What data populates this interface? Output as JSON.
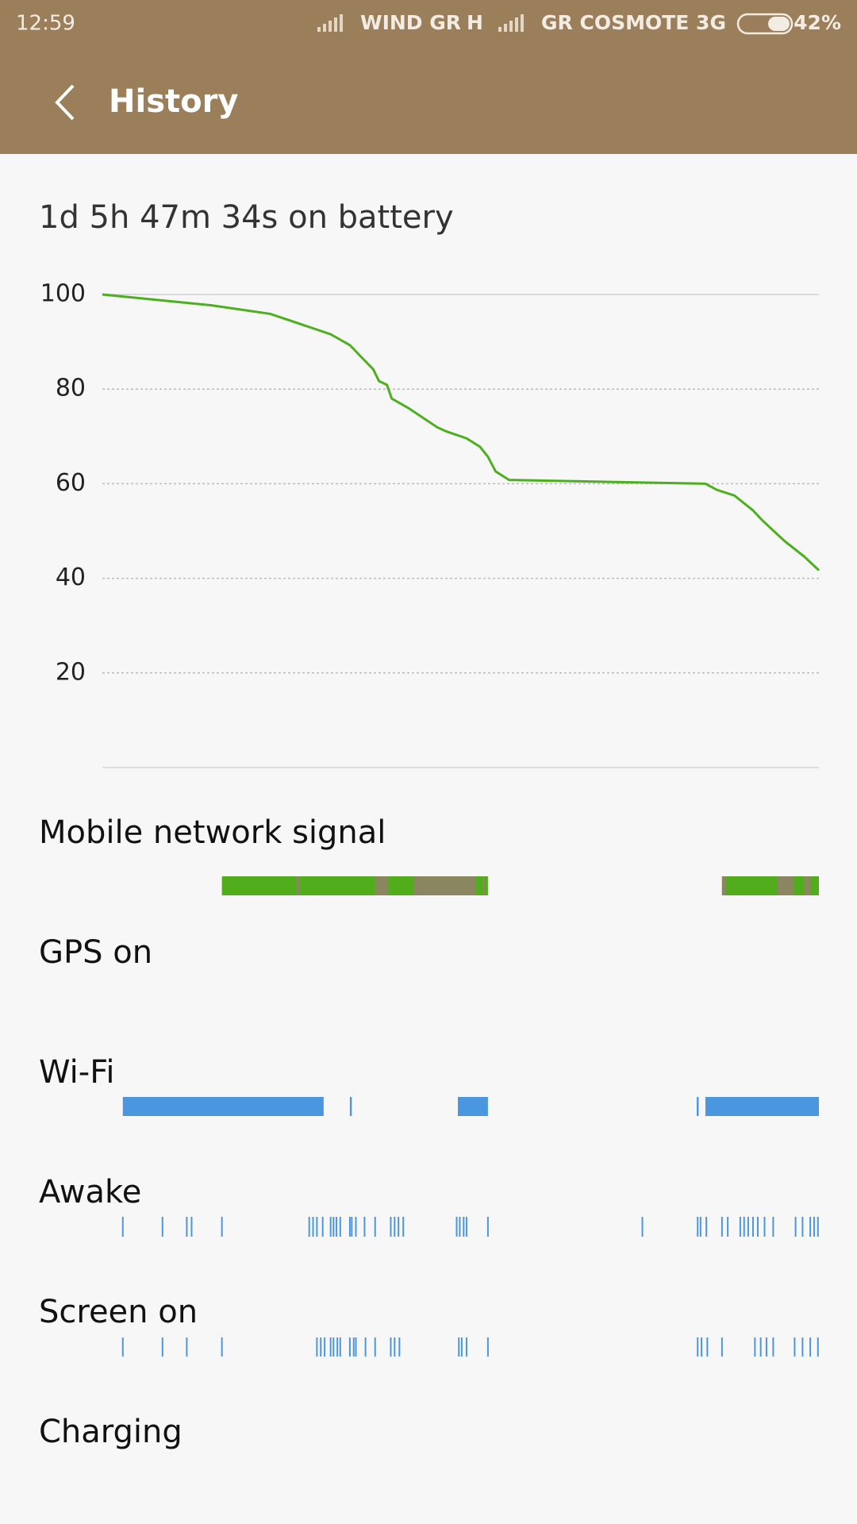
{
  "status_bar": {
    "time": "12:59",
    "carrier1": "WIND GR",
    "network1": "H",
    "carrier2": "GR COSMOTE 3G",
    "battery": "42%"
  },
  "header": {
    "title": "History"
  },
  "summary": "1d 5h 47m 34s on battery",
  "chart_data": {
    "type": "line",
    "color": "#4caf1e",
    "xlim": [
      0,
      29.79
    ],
    "ylim": [
      0,
      100
    ],
    "yticks": [
      20,
      40,
      60,
      80,
      100
    ],
    "grid": true,
    "x": [
      0,
      4.56,
      6.98,
      9.49,
      10.29,
      10.78,
      11.26,
      11.5,
      11.83,
      12.03,
      12.72,
      13.93,
      14.33,
      15.14,
      15.7,
      16.03,
      16.35,
      16.91,
      25.07,
      25.55,
      26.28,
      27.04,
      27.41,
      27.89,
      28.38,
      29.18,
      29.79
    ],
    "values": [
      100,
      97.7,
      95.9,
      91.6,
      89.3,
      86.7,
      84.2,
      81.7,
      80.9,
      78,
      76,
      71.9,
      71,
      69.6,
      67.8,
      65.7,
      62.6,
      60.8,
      60,
      58.7,
      57.5,
      54.4,
      52.4,
      50.1,
      47.8,
      44.6,
      41.7
    ]
  },
  "timelines": [
    {
      "label": "Mobile network signal",
      "segments": [
        {
          "start": 4.97,
          "end": 16.03,
          "color": "#52ad1c"
        },
        {
          "start": 8.07,
          "end": 8.2,
          "color": "#8a8660"
        },
        {
          "start": 11.34,
          "end": 11.87,
          "color": "#8a8660"
        },
        {
          "start": 12.96,
          "end": 15.54,
          "color": "#8a8660"
        },
        {
          "start": 15.83,
          "end": 15.91,
          "color": "#8a8660"
        },
        {
          "start": 25.76,
          "end": 29.79,
          "color": "#52ad1c"
        },
        {
          "start": 25.76,
          "end": 25.92,
          "color": "#8a8660"
        },
        {
          "start": 28.06,
          "end": 28.74,
          "color": "#8a8660"
        },
        {
          "start": 29.18,
          "end": 29.43,
          "color": "#8a8660"
        }
      ]
    },
    {
      "label": "GPS on",
      "segments": []
    },
    {
      "label": "Wi-Fi",
      "segments": [
        {
          "start": 0.85,
          "end": 9.2,
          "color": "#4a97e0"
        },
        {
          "start": 10.29,
          "end": 10.37,
          "color": "#4a97e0"
        },
        {
          "start": 14.78,
          "end": 16.03,
          "color": "#4a97e0"
        },
        {
          "start": 24.71,
          "end": 24.79,
          "color": "#4a97e0"
        },
        {
          "start": 25.07,
          "end": 29.79,
          "color": "#4a97e0"
        }
      ]
    },
    {
      "label": "Awake",
      "color": "#4a97e0",
      "ticks": [
        0.85,
        2.5,
        3.51,
        3.71,
        4.97,
        8.6,
        8.76,
        8.92,
        9.16,
        9.49,
        9.61,
        9.73,
        9.89,
        10.29,
        10.37,
        10.54,
        10.9,
        11.34,
        11.99,
        12.15,
        12.31,
        12.51,
        14.73,
        14.86,
        15.02,
        15.14,
        16.03,
        22.45,
        24.75,
        24.87,
        25.11,
        25.76,
        26,
        26.52,
        26.68,
        26.85,
        27.05,
        27.25,
        27.53,
        27.89,
        28.82,
        29.11,
        29.43,
        29.59,
        29.75
      ]
    },
    {
      "label": "Screen on",
      "color": "#4a97e0",
      "ticks": [
        0.85,
        2.5,
        3.51,
        4.97,
        8.92,
        9.08,
        9.24,
        9.49,
        9.61,
        9.77,
        9.89,
        10.29,
        10.45,
        10.54,
        10.94,
        11.34,
        11.99,
        12.15,
        12.35,
        14.82,
        14.94,
        15.14,
        16.03,
        24.75,
        24.91,
        25.15,
        25.76,
        27.13,
        27.37,
        27.61,
        27.89,
        28.78,
        29.11,
        29.43,
        29.75
      ]
    },
    {
      "label": "Charging",
      "segments": []
    }
  ]
}
